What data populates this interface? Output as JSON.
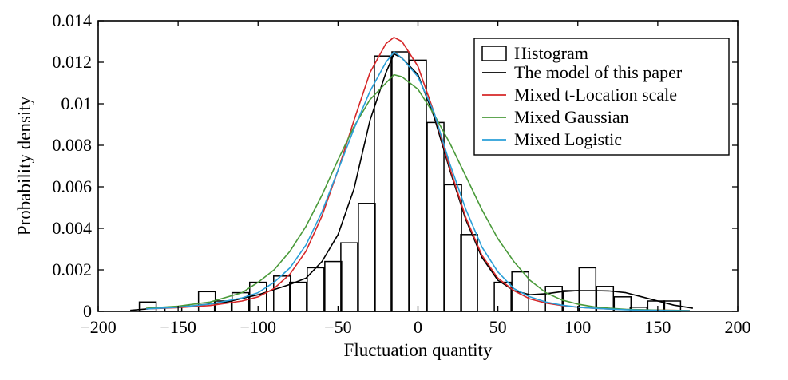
{
  "chart_data": {
    "type": "histogram-with-density-curves",
    "xlabel": "Fluctuation quantity",
    "ylabel": "Probability density",
    "xlim": [
      -200,
      200
    ],
    "ylim": [
      0,
      0.014
    ],
    "x_ticks": [
      -200,
      -150,
      -100,
      -50,
      0,
      50,
      100,
      150,
      200
    ],
    "x_tick_labels": [
      "−200",
      "−150",
      "−100",
      "−50",
      "0",
      "50",
      "100",
      "150",
      "200"
    ],
    "y_ticks": [
      0,
      0.002,
      0.004,
      0.006,
      0.008,
      0.01,
      0.012,
      0.014
    ],
    "y_tick_labels": [
      "0",
      "0.002",
      "0.004",
      "0.006",
      "0.008",
      "0.01",
      "0.012",
      "0.014"
    ],
    "grid": false,
    "legend_position": "top-right",
    "histogram": {
      "name": "Histogram",
      "bin_width": 10.5,
      "bins": [
        {
          "center": -169,
          "value": 0.00045
        },
        {
          "center": -153,
          "value": 0.0002
        },
        {
          "center": -132,
          "value": 0.00095
        },
        {
          "center": -122,
          "value": 0.0005
        },
        {
          "center": -111,
          "value": 0.0009
        },
        {
          "center": -100,
          "value": 0.0014
        },
        {
          "center": -85,
          "value": 0.0017
        },
        {
          "center": -75,
          "value": 0.0014
        },
        {
          "center": -64,
          "value": 0.0021
        },
        {
          "center": -53,
          "value": 0.0024
        },
        {
          "center": -43,
          "value": 0.0033
        },
        {
          "center": -32,
          "value": 0.0052
        },
        {
          "center": -22,
          "value": 0.0123
        },
        {
          "center": -11,
          "value": 0.0125
        },
        {
          "center": 0,
          "value": 0.0121
        },
        {
          "center": 11,
          "value": 0.0091
        },
        {
          "center": 22,
          "value": 0.0061
        },
        {
          "center": 32,
          "value": 0.0037
        },
        {
          "center": 53,
          "value": 0.0014
        },
        {
          "center": 64,
          "value": 0.0019
        },
        {
          "center": 85,
          "value": 0.0012
        },
        {
          "center": 96,
          "value": 0.001
        },
        {
          "center": 106,
          "value": 0.0021
        },
        {
          "center": 117,
          "value": 0.0012
        },
        {
          "center": 128,
          "value": 0.0007
        },
        {
          "center": 138,
          "value": 0.0002
        },
        {
          "center": 149,
          "value": 0.0005
        },
        {
          "center": 159,
          "value": 0.0005
        }
      ]
    },
    "series": [
      {
        "name": "The model of this paper",
        "color": "#000000",
        "x": [
          -180,
          -160,
          -140,
          -120,
          -100,
          -80,
          -70,
          -60,
          -50,
          -40,
          -30,
          -20,
          -15,
          -10,
          0,
          10,
          20,
          30,
          40,
          50,
          60,
          70,
          80,
          90,
          100,
          110,
          120,
          130,
          140,
          150,
          160,
          172
        ],
        "y": [
          5e-05,
          0.00018,
          0.00027,
          0.00045,
          0.0008,
          0.0013,
          0.0016,
          0.0024,
          0.0037,
          0.0059,
          0.0092,
          0.0115,
          0.0124,
          0.0122,
          0.0114,
          0.0094,
          0.0068,
          0.0044,
          0.0026,
          0.0015,
          0.001,
          0.0008,
          0.00085,
          0.00095,
          0.001,
          0.001,
          0.00098,
          0.0009,
          0.0007,
          0.0005,
          0.0003,
          0.00015
        ]
      },
      {
        "name": "Mixed t-Location scale",
        "color": "#d62728",
        "x": [
          -170,
          -150,
          -130,
          -110,
          -100,
          -90,
          -80,
          -70,
          -60,
          -50,
          -40,
          -30,
          -20,
          -15,
          -10,
          0,
          10,
          20,
          30,
          40,
          50,
          60,
          70,
          80,
          90,
          100,
          110,
          120,
          130,
          140,
          150,
          160,
          170
        ],
        "y": [
          0.00012,
          0.00018,
          0.00028,
          0.0005,
          0.0007,
          0.0011,
          0.0018,
          0.0029,
          0.0046,
          0.0068,
          0.0092,
          0.0115,
          0.0129,
          0.0132,
          0.013,
          0.0118,
          0.0096,
          0.0069,
          0.0045,
          0.0027,
          0.0016,
          0.001,
          0.0006,
          0.0004,
          0.00028,
          0.0002,
          0.00015,
          0.00011,
          9e-05,
          7e-05,
          6e-05,
          5e-05,
          4e-05
        ]
      },
      {
        "name": "Mixed Gaussian",
        "color": "#4a9a3a",
        "x": [
          -170,
          -150,
          -130,
          -110,
          -100,
          -90,
          -80,
          -70,
          -60,
          -50,
          -40,
          -30,
          -20,
          -15,
          -10,
          0,
          10,
          20,
          30,
          40,
          50,
          60,
          70,
          80,
          90,
          100,
          110,
          120,
          130,
          140,
          150,
          160,
          170
        ],
        "y": [
          0.00015,
          0.00025,
          0.00045,
          0.0009,
          0.0014,
          0.002,
          0.0029,
          0.0041,
          0.0056,
          0.0073,
          0.0089,
          0.0102,
          0.011,
          0.0114,
          0.0113,
          0.0107,
          0.0095,
          0.0081,
          0.0065,
          0.0049,
          0.0035,
          0.0024,
          0.0015,
          0.0009,
          0.00055,
          0.00035,
          0.00022,
          0.00015,
          0.0001,
          8e-05,
          6e-05,
          5e-05,
          4e-05
        ]
      },
      {
        "name": "Mixed Logistic",
        "color": "#2a9fd8",
        "x": [
          -170,
          -150,
          -130,
          -110,
          -100,
          -90,
          -80,
          -70,
          -60,
          -50,
          -40,
          -30,
          -20,
          -15,
          -10,
          0,
          10,
          20,
          30,
          40,
          50,
          60,
          70,
          80,
          90,
          100,
          110,
          120,
          130,
          140,
          150,
          160,
          170
        ],
        "y": [
          0.00012,
          0.0002,
          0.00035,
          0.00065,
          0.0009,
          0.0014,
          0.0021,
          0.0032,
          0.0048,
          0.0068,
          0.0088,
          0.0106,
          0.012,
          0.0125,
          0.0122,
          0.0113,
          0.0096,
          0.0071,
          0.0049,
          0.0031,
          0.0019,
          0.0011,
          0.0007,
          0.00045,
          0.0003,
          0.0002,
          0.00015,
          0.00011,
          8e-05,
          6e-05,
          5e-05,
          4e-05,
          3e-05
        ]
      }
    ]
  }
}
